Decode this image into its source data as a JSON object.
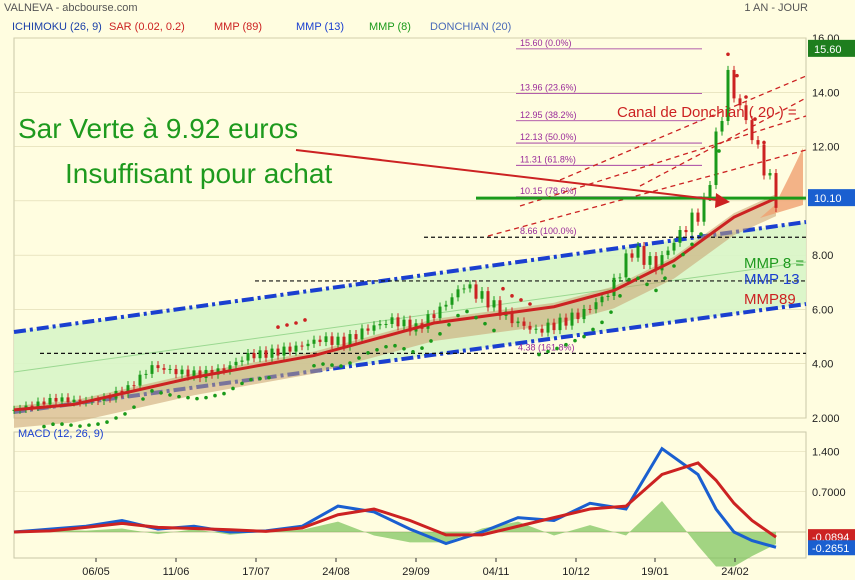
{
  "header": {
    "title": "VALNEVA - abcbourse.com",
    "period": "1 AN - JOUR"
  },
  "legend": [
    {
      "label": "ICHIMOKU (26, 9)",
      "color": "#1a3fa8"
    },
    {
      "label": "SAR (0.02, 0.2)",
      "color": "#cc2222"
    },
    {
      "label": "MMP (89)",
      "color": "#cc2222"
    },
    {
      "label": "MMP (13)",
      "color": "#1a3fd0"
    },
    {
      "label": "MMP (8)",
      "color": "#1a9a1a"
    },
    {
      "label": "DONCHIAN (20)",
      "color": "#4a6ab8"
    }
  ],
  "annotations": {
    "sar_text": "Sar Verte à 9.92 euros",
    "insufficient_text": "Insuffisant pour achat",
    "donchian_label": "Canal de Donchian ( 20 ) =",
    "mmp8_label": "MMP 8 =",
    "mmp13_label": "MMP 13",
    "mmp89_label": "MMP89"
  },
  "colors": {
    "background": "#fffde0",
    "channel_fill": "#d8f5c8",
    "channel_edge": "#1a3fd0",
    "candle_up": "#1a9a1a",
    "candle_down": "#cc2222",
    "mmp89": "#cc2222",
    "cloud": "#c8a070",
    "fib": "#9a2a9a",
    "support": "#1a9a1a",
    "price_tag": "#1a5fd0",
    "macd_line": "#1a5fd0",
    "signal_line": "#cc2222",
    "hist": "#7ac25a"
  },
  "chart_data": [
    {
      "type": "candlestick",
      "title": "VALNEVA",
      "x_ticks": [
        "06/05",
        "11/06",
        "17/07",
        "24/08",
        "29/09",
        "04/11",
        "10/12",
        "19/01",
        "24/02"
      ],
      "ylim": [
        2,
        16
      ],
      "y_ticks": [
        "16.00",
        "14.00",
        "12.00",
        "10.00",
        "8.00",
        "6.00",
        "4.00",
        "2.000"
      ],
      "last_price": "15.60",
      "current_level": "10.10",
      "fibonacci": [
        {
          "label": "15.60  (0.0%)",
          "value": 15.6
        },
        {
          "label": "13.96  (23.6%)",
          "value": 13.96
        },
        {
          "label": "12.95  (38.2%)",
          "value": 12.95
        },
        {
          "label": "12.13  (50.0%)",
          "value": 12.13
        },
        {
          "label": "11.31  (61.8%)",
          "value": 11.31
        },
        {
          "label": "10.15  (78.6%)",
          "value": 10.15
        },
        {
          "label": "8.66  (100.0%)",
          "value": 8.66
        },
        {
          "label": "4.38  (161.8%)",
          "value": 4.38
        }
      ],
      "close_series": {
        "x": [
          0,
          14,
          22,
          30,
          38,
          46,
          54,
          62,
          70,
          78,
          86,
          94,
          102,
          110,
          118,
          126,
          134,
          142,
          150,
          158,
          166,
          174,
          182,
          190,
          198,
          206,
          214,
          222,
          230,
          238,
          246,
          254
        ],
        "values": [
          2.3,
          2.7,
          2.6,
          2.7,
          3.1,
          3.9,
          3.7,
          3.6,
          3.8,
          4.3,
          4.4,
          4.6,
          4.9,
          4.8,
          5.3,
          5.6,
          5.3,
          6.0,
          6.9,
          6.3,
          5.6,
          5.2,
          5.5,
          5.9,
          6.6,
          8.2,
          7.6,
          8.8,
          9.8,
          14.5,
          12.4,
          10.1
        ]
      },
      "mmp89": {
        "x": [
          0,
          20,
          40,
          60,
          80,
          100,
          120,
          140,
          160,
          180,
          200,
          220,
          240,
          254
        ],
        "values": [
          2.3,
          2.5,
          3.0,
          3.5,
          3.9,
          4.3,
          4.9,
          5.5,
          5.8,
          6.1,
          6.7,
          7.8,
          9.4,
          10.1
        ]
      }
    },
    {
      "type": "line",
      "title": "MACD (12, 26, 9)",
      "y_ticks": [
        "1.400",
        "0.7000"
      ],
      "ylim": [
        -0.4,
        1.6
      ],
      "last_values": [
        "-0.0894",
        "-0.2651"
      ],
      "series": [
        {
          "name": "MACD",
          "x": [
            0,
            12,
            24,
            36,
            48,
            60,
            72,
            84,
            96,
            108,
            120,
            132,
            144,
            156,
            168,
            180,
            192,
            204,
            216,
            228,
            234,
            240,
            246,
            254
          ],
          "values": [
            0.0,
            0.05,
            0.1,
            0.2,
            0.05,
            0.1,
            0.0,
            0.02,
            0.1,
            0.45,
            0.35,
            0.05,
            -0.2,
            0.0,
            0.25,
            0.2,
            0.5,
            0.4,
            1.45,
            1.0,
            0.4,
            0.0,
            -0.15,
            -0.2651
          ]
        },
        {
          "name": "Signal",
          "x": [
            0,
            12,
            24,
            36,
            48,
            60,
            72,
            84,
            96,
            108,
            120,
            132,
            144,
            156,
            168,
            180,
            192,
            204,
            216,
            228,
            234,
            240,
            246,
            254
          ],
          "values": [
            0.0,
            0.02,
            0.08,
            0.15,
            0.08,
            0.06,
            0.04,
            0.01,
            0.07,
            0.3,
            0.4,
            0.2,
            -0.05,
            -0.05,
            0.1,
            0.25,
            0.4,
            0.45,
            1.0,
            1.2,
            0.9,
            0.5,
            0.2,
            -0.0894
          ]
        }
      ]
    }
  ]
}
